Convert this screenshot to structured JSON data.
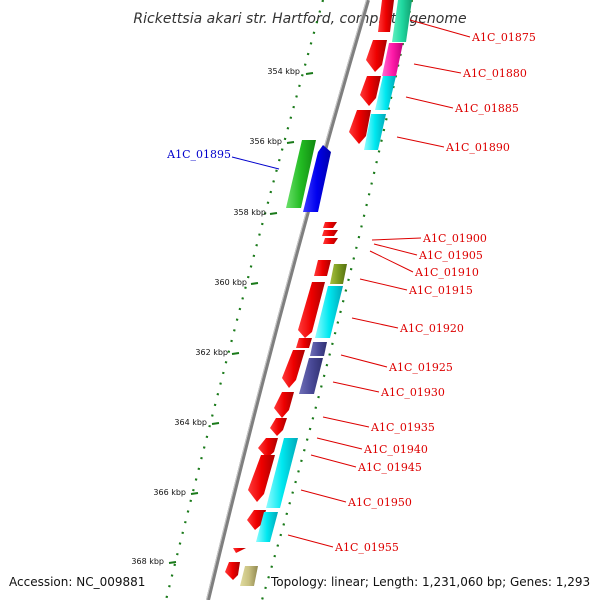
{
  "title": "Rickettsia akari str. Hartford, complete genome",
  "accession": "Accession: NC_009881",
  "summary": "Topology: linear; Length: 1,231,060 bp; Genes: 1,293",
  "colors": {
    "label_red": "#dd0000",
    "label_blue": "#0000cc",
    "tick_green": "#1a7a1a",
    "backbone": "#7f7f7f"
  },
  "scale_ticks": [
    "354 kbp",
    "356 kbp",
    "358 kbp",
    "360 kbp",
    "362 kbp",
    "364 kbp",
    "366 kbp",
    "368 kbp"
  ],
  "gene_labels": [
    {
      "id": "A1C_01875",
      "side": "right"
    },
    {
      "id": "A1C_01880",
      "side": "right"
    },
    {
      "id": "A1C_01885",
      "side": "right"
    },
    {
      "id": "A1C_01890",
      "side": "right"
    },
    {
      "id": "A1C_01895",
      "side": "left"
    },
    {
      "id": "A1C_01900",
      "side": "right"
    },
    {
      "id": "A1C_01905",
      "side": "right"
    },
    {
      "id": "A1C_01910",
      "side": "right"
    },
    {
      "id": "A1C_01915",
      "side": "right"
    },
    {
      "id": "A1C_01920",
      "side": "right"
    },
    {
      "id": "A1C_01925",
      "side": "right"
    },
    {
      "id": "A1C_01930",
      "side": "right"
    },
    {
      "id": "A1C_01935",
      "side": "right"
    },
    {
      "id": "A1C_01940",
      "side": "right"
    },
    {
      "id": "A1C_01945",
      "side": "right"
    },
    {
      "id": "A1C_01950",
      "side": "right"
    },
    {
      "id": "A1C_01955",
      "side": "right"
    }
  ]
}
